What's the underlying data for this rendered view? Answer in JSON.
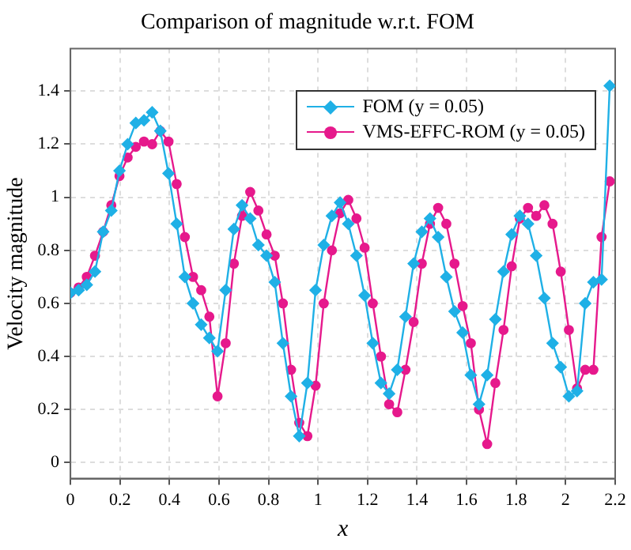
{
  "chart_data": {
    "type": "line",
    "title": "Comparison of magnitude w.r.t. FOM",
    "xlabel": "x",
    "ylabel": "Velocity magnitude",
    "x": [
      0,
      0.033,
      0.066,
      0.099,
      0.132,
      0.165,
      0.198,
      0.231,
      0.264,
      0.297,
      0.33,
      0.363,
      0.396,
      0.429,
      0.462,
      0.495,
      0.528,
      0.561,
      0.594,
      0.627,
      0.66,
      0.693,
      0.726,
      0.759,
      0.792,
      0.825,
      0.858,
      0.891,
      0.924,
      0.957,
      0.99,
      1.023,
      1.056,
      1.089,
      1.122,
      1.155,
      1.188,
      1.221,
      1.254,
      1.287,
      1.32,
      1.353,
      1.386,
      1.419,
      1.452,
      1.485,
      1.518,
      1.551,
      1.584,
      1.617,
      1.65,
      1.683,
      1.716,
      1.749,
      1.782,
      1.815,
      1.848,
      1.881,
      1.914,
      1.947,
      1.98,
      2.013,
      2.046,
      2.079,
      2.112,
      2.145,
      2.178
    ],
    "series": [
      {
        "name": "FOM (y = 0.05)",
        "color": "#1fb0e6",
        "marker": "diamond",
        "values": [
          0.64,
          0.65,
          0.67,
          0.72,
          0.87,
          0.95,
          1.1,
          1.2,
          1.28,
          1.29,
          1.32,
          1.25,
          1.09,
          0.9,
          0.7,
          0.6,
          0.52,
          0.47,
          0.42,
          0.65,
          0.88,
          0.97,
          0.92,
          0.82,
          0.78,
          0.68,
          0.45,
          0.25,
          0.1,
          0.3,
          0.65,
          0.82,
          0.93,
          0.98,
          0.9,
          0.78,
          0.63,
          0.45,
          0.3,
          0.26,
          0.35,
          0.55,
          0.75,
          0.87,
          0.92,
          0.85,
          0.7,
          0.57,
          0.49,
          0.33,
          0.22,
          0.33,
          0.54,
          0.72,
          0.86,
          0.93,
          0.9,
          0.78,
          0.62,
          0.45,
          0.36,
          0.25,
          0.27,
          0.6,
          0.68,
          0.69,
          1.42
        ]
      },
      {
        "name": "VMS-EFFC-ROM (y = 0.05)",
        "color": "#e6198c",
        "marker": "circle",
        "values": [
          0.64,
          0.66,
          0.7,
          0.78,
          0.87,
          0.97,
          1.08,
          1.15,
          1.19,
          1.21,
          1.2,
          1.25,
          1.21,
          1.05,
          0.85,
          0.7,
          0.65,
          0.55,
          0.25,
          0.45,
          0.75,
          0.93,
          1.02,
          0.95,
          0.86,
          0.78,
          0.6,
          0.35,
          0.15,
          0.1,
          0.29,
          0.6,
          0.8,
          0.94,
          0.99,
          0.92,
          0.81,
          0.6,
          0.4,
          0.22,
          0.19,
          0.35,
          0.53,
          0.75,
          0.9,
          0.96,
          0.9,
          0.75,
          0.59,
          0.45,
          0.2,
          0.07,
          0.3,
          0.5,
          0.74,
          0.92,
          0.96,
          0.93,
          0.97,
          0.9,
          0.72,
          0.5,
          0.28,
          0.35,
          0.35,
          0.85,
          1.06
        ]
      }
    ],
    "xlim": [
      0,
      2.2
    ],
    "xticks": [
      0,
      0.2,
      0.4,
      0.6,
      0.8,
      1,
      1.2,
      1.4,
      1.6,
      1.8,
      2,
      2.2
    ],
    "ylim": [
      -0.06,
      1.56
    ],
    "yticks": [
      0,
      0.2,
      0.4,
      0.6,
      0.8,
      1,
      1.2,
      1.4
    ],
    "grid": true,
    "legend": "top right"
  }
}
